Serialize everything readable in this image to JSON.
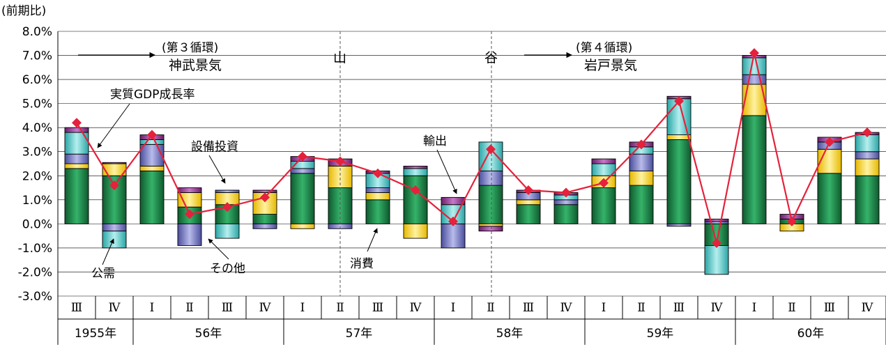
{
  "chart_data": {
    "type": "bar",
    "stacked": true,
    "ylabel": "(前期比)",
    "ylim": [
      -3.0,
      8.0
    ],
    "yticks": [
      "8.0%",
      "7.0%",
      "6.0%",
      "5.0%",
      "4.0%",
      "3.0%",
      "2.0%",
      "1.0%",
      "0.0%",
      "-1.0%",
      "-2.0%",
      "-3.0%"
    ],
    "quarters": [
      "Ⅲ",
      "Ⅳ",
      "Ⅰ",
      "Ⅱ",
      "Ⅲ",
      "Ⅳ",
      "Ⅰ",
      "Ⅱ",
      "Ⅲ",
      "Ⅳ",
      "Ⅰ",
      "Ⅱ",
      "Ⅲ",
      "Ⅳ",
      "Ⅰ",
      "Ⅱ",
      "Ⅲ",
      "Ⅳ",
      "Ⅰ",
      "Ⅱ",
      "Ⅲ",
      "Ⅳ"
    ],
    "years": [
      {
        "label": "1955年",
        "count": 2
      },
      {
        "label": "56年",
        "count": 4
      },
      {
        "label": "57年",
        "count": 4
      },
      {
        "label": "58年",
        "count": 4
      },
      {
        "label": "59年",
        "count": 4
      },
      {
        "label": "60年",
        "count": 4
      }
    ],
    "series": [
      {
        "name": "消費",
        "color": "#1e8a4a",
        "values": [
          2.3,
          2.0,
          2.2,
          0.7,
          0.8,
          0.4,
          2.1,
          1.5,
          1.0,
          2.0,
          0,
          1.6,
          0.8,
          0.8,
          1.5,
          1.6,
          3.5,
          -0.9,
          4.5,
          0.2,
          2.1,
          2.0
        ]
      },
      {
        "name": "設備投資",
        "color": "#f5d23c",
        "values": [
          0.2,
          0.5,
          0.2,
          0.6,
          0.5,
          0.9,
          -0.2,
          0.9,
          0.3,
          -0.6,
          0,
          -0.1,
          0.2,
          0,
          0.5,
          0.6,
          0.2,
          0,
          1.3,
          -0.3,
          1.0,
          0.7
        ]
      },
      {
        "name": "その他",
        "color": "#7b7fc4",
        "values": [
          0.4,
          -0.3,
          0.9,
          -0.9,
          0.1,
          -0.2,
          0.2,
          -0.2,
          0.2,
          0,
          -1.0,
          0.6,
          0.3,
          0.2,
          0,
          0.7,
          -0.1,
          0.1,
          0.4,
          0,
          0.3,
          0.3
        ]
      },
      {
        "name": "公需",
        "color": "#4fc5c5",
        "values": [
          0.9,
          -0.7,
          0.2,
          0,
          -0.6,
          0,
          0.3,
          0,
          0.6,
          0.3,
          0.8,
          1.2,
          0,
          0.2,
          0.5,
          0.3,
          1.5,
          -1.2,
          0.7,
          0,
          0,
          0.7
        ]
      },
      {
        "name": "輸出",
        "color": "#8e3a8e",
        "values": [
          0.2,
          0.05,
          0.2,
          0.2,
          0,
          0.1,
          0.2,
          0.3,
          0.1,
          0.1,
          0.3,
          -0.2,
          0.1,
          0.1,
          0.2,
          0.2,
          0.1,
          0.1,
          0.1,
          0.2,
          0.2,
          0.1
        ]
      }
    ],
    "line": {
      "name": "実質GDP成長率",
      "color": "#e5213b",
      "values": [
        4.2,
        1.6,
        3.7,
        0.4,
        0.7,
        1.1,
        2.8,
        2.6,
        2.1,
        1.4,
        0.1,
        3.1,
        1.4,
        1.3,
        1.7,
        3.3,
        5.1,
        -0.8,
        7.1,
        0.1,
        3.4,
        3.8
      ]
    },
    "annotations": {
      "jinmu": [
        "(第３循環)",
        "神武景気"
      ],
      "iwato": [
        "(第４循環)",
        "岩戸景気"
      ],
      "yama": "山",
      "tani": "谷",
      "gdp": "実質GDP成長率",
      "setsubi": "設備投資",
      "yushutsu": "輸出",
      "koju": "公需",
      "sonota": "その他",
      "shohi": "消費"
    }
  }
}
